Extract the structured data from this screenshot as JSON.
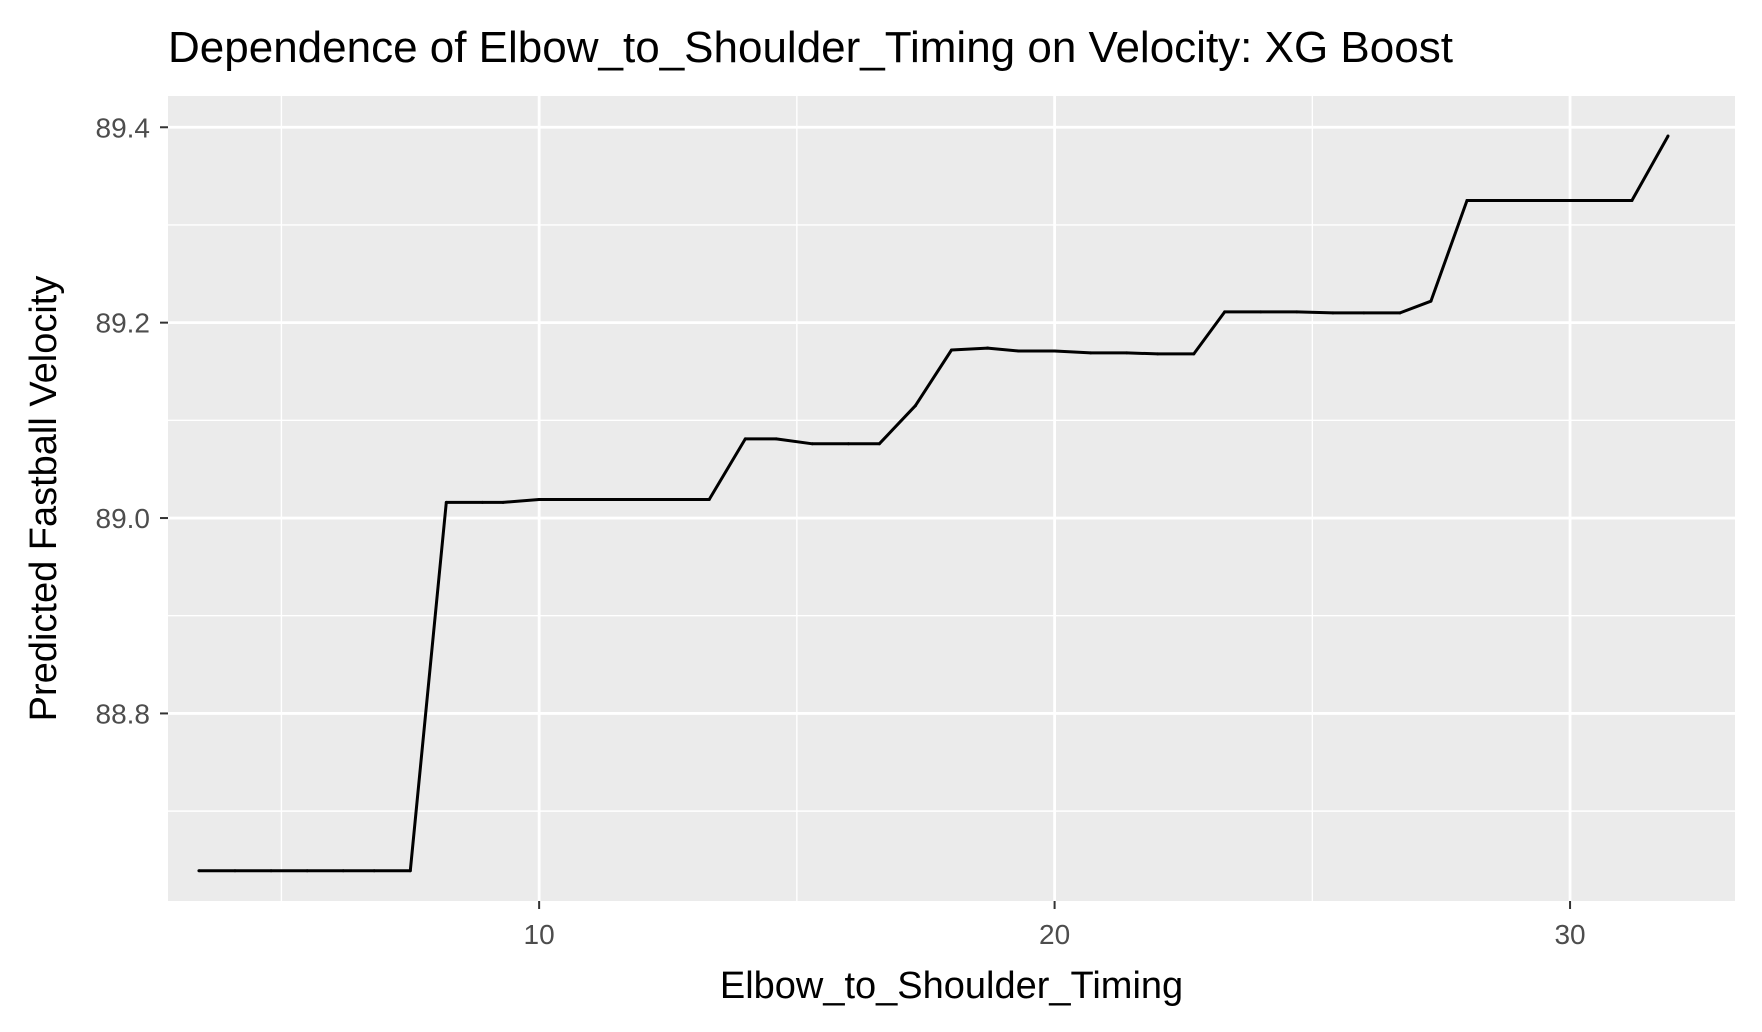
{
  "chart_data": {
    "type": "line",
    "title": "Dependence of Elbow_to_Shoulder_Timing on Velocity: XG Boost",
    "xlabel": "Elbow_to_Shoulder_Timing",
    "ylabel": "Predicted Fastball Velocity",
    "xlim": [
      2.8,
      33.2
    ],
    "ylim": [
      88.608,
      89.432
    ],
    "x_ticks": [
      10,
      20,
      30
    ],
    "x_tick_labels": [
      "10",
      "20",
      "30"
    ],
    "y_ticks": [
      88.8,
      89.0,
      89.2,
      89.4
    ],
    "y_tick_labels": [
      "88.8",
      "89.0",
      "89.2",
      "89.4"
    ],
    "x_minor_ticks": [
      5,
      15,
      25
    ],
    "y_minor_ticks": [
      88.7,
      88.9,
      89.1,
      89.3
    ],
    "grid": true,
    "legend": "none",
    "colors": {
      "panel_background": "#EBEBEB",
      "grid": "#FFFFFF",
      "line": "#000000",
      "tick_label": "#4D4D4D"
    },
    "series": [
      {
        "x": [
          3.4,
          4.1,
          4.8,
          5.5,
          6.2,
          6.8,
          7.5,
          8.2,
          8.9,
          9.3,
          10.0,
          10.6,
          11.3,
          12.0,
          12.6,
          13.3,
          14.0,
          14.6,
          15.3,
          16.0,
          16.6,
          17.3,
          18.0,
          18.7,
          19.3,
          20.0,
          20.7,
          21.4,
          22.0,
          22.7,
          23.3,
          24.0,
          24.7,
          25.4,
          26.0,
          26.7,
          27.3,
          28.0,
          28.7,
          29.4,
          30.1,
          30.7,
          31.2,
          31.9
        ],
        "values": [
          88.639,
          88.639,
          88.639,
          88.639,
          88.639,
          88.639,
          88.639,
          89.016,
          89.016,
          89.016,
          89.019,
          89.019,
          89.019,
          89.019,
          89.019,
          89.019,
          89.081,
          89.081,
          89.076,
          89.076,
          89.076,
          89.115,
          89.172,
          89.174,
          89.171,
          89.171,
          89.169,
          89.169,
          89.168,
          89.168,
          89.211,
          89.211,
          89.211,
          89.21,
          89.21,
          89.21,
          89.222,
          89.325,
          89.325,
          89.325,
          89.325,
          89.325,
          89.325,
          89.391
        ]
      }
    ]
  }
}
